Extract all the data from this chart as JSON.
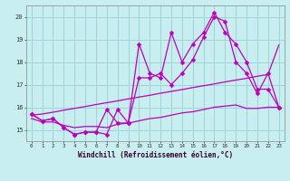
{
  "xlabel": "Windchill (Refroidissement éolien,°C)",
  "xlim": [
    -0.5,
    23.5
  ],
  "ylim": [
    14.5,
    20.5
  ],
  "yticks": [
    15,
    16,
    17,
    18,
    19,
    20
  ],
  "xticks": [
    0,
    1,
    2,
    3,
    4,
    5,
    6,
    7,
    8,
    9,
    10,
    11,
    12,
    13,
    14,
    15,
    16,
    17,
    18,
    19,
    20,
    21,
    22,
    23
  ],
  "bg_color": "#c8eef0",
  "grid_color": "#9dd4d8",
  "line_color": "#bb00bb",
  "line1": [
    15.7,
    15.4,
    15.5,
    15.1,
    14.8,
    14.9,
    14.9,
    14.8,
    15.9,
    15.3,
    18.8,
    17.5,
    17.3,
    19.3,
    18.0,
    18.8,
    19.3,
    20.2,
    19.3,
    18.8,
    18.0,
    16.8,
    16.8,
    16.0
  ],
  "line2": [
    15.7,
    15.4,
    15.5,
    15.1,
    14.8,
    14.9,
    14.9,
    15.9,
    15.3,
    15.3,
    17.3,
    17.3,
    17.5,
    17.0,
    17.5,
    18.1,
    19.1,
    20.0,
    19.8,
    18.0,
    17.5,
    16.6,
    17.5,
    16.0
  ],
  "line3_straight": [
    15.65,
    15.7,
    15.78,
    15.87,
    15.95,
    16.03,
    16.12,
    16.2,
    16.28,
    16.37,
    16.45,
    16.53,
    16.62,
    16.7,
    16.78,
    16.87,
    16.95,
    17.03,
    17.12,
    17.2,
    17.28,
    17.37,
    17.45,
    18.75
  ],
  "line4_flat": [
    15.5,
    15.35,
    15.35,
    15.2,
    15.1,
    15.15,
    15.15,
    15.1,
    15.25,
    15.3,
    15.4,
    15.5,
    15.55,
    15.65,
    15.75,
    15.8,
    15.9,
    16.0,
    16.05,
    16.1,
    15.95,
    15.95,
    16.0,
    16.0
  ]
}
